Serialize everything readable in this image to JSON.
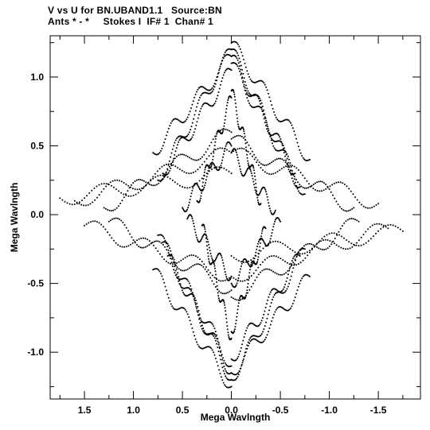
{
  "chart_data": {
    "type": "scatter",
    "title_line1": "V vs U for BN.UBAND1.1   Source:BN",
    "title_line2": "Ants * - *     Stokes I  IF# 1  Chan# 1",
    "xlabel": "Mega Wavlngth",
    "ylabel": "Mega Wavlngth",
    "xlim": [
      1.85,
      -1.93
    ],
    "ylim": [
      -1.34,
      1.3
    ],
    "x_ticks": [
      {
        "value": 1.5,
        "label": "1.5"
      },
      {
        "value": 1.0,
        "label": "1.0"
      },
      {
        "value": 0.5,
        "label": "0.5"
      },
      {
        "value": 0.0,
        "label": "0.0"
      },
      {
        "value": -0.5,
        "label": "-0.5"
      },
      {
        "value": -1.0,
        "label": "-1.0"
      },
      {
        "value": -1.5,
        "label": "-1.5"
      }
    ],
    "y_ticks": [
      {
        "value": 1.0,
        "label": "1.0"
      },
      {
        "value": 0.5,
        "label": "0.5"
      },
      {
        "value": 0.0,
        "label": "0.0"
      },
      {
        "value": -0.5,
        "label": "-0.5"
      },
      {
        "value": -1.0,
        "label": "-1.0"
      }
    ],
    "grid": false,
    "marker_color": "#000000",
    "series": [
      {
        "tracks": [
          {
            "u0": 0.0,
            "u1": -0.7,
            "v0": 1.2,
            "v1": 0.2
          },
          {
            "u0": 0.0,
            "u1": -0.8,
            "v0": 1.25,
            "v1": 0.4
          },
          {
            "u0": 0.0,
            "u1": -0.65,
            "v0": 1.15,
            "v1": 0.3
          },
          {
            "u0": 0.0,
            "u1": -0.75,
            "v0": 1.1,
            "v1": 0.15
          },
          {
            "u0": 0.0,
            "u1": 0.75,
            "v0": 1.2,
            "v1": 0.25
          },
          {
            "u0": 0.0,
            "u1": 0.7,
            "v0": 1.05,
            "v1": 0.3
          },
          {
            "u0": 0.0,
            "u1": 0.8,
            "v0": 1.15,
            "v1": 0.45
          },
          {
            "u0": 0.0,
            "u1": 1.3,
            "v0": 0.6,
            "v1": 0.05
          },
          {
            "u0": 0.0,
            "u1": 1.6,
            "v0": 0.45,
            "v1": 0.1
          },
          {
            "u0": 0.0,
            "u1": 1.75,
            "v0": 0.3,
            "v1": 0.12
          },
          {
            "u0": 0.0,
            "u1": -1.25,
            "v0": 0.55,
            "v1": 0.05
          },
          {
            "u0": 0.0,
            "u1": -1.5,
            "v0": 0.45,
            "v1": 0.08
          },
          {
            "u0": 0.0,
            "u1": 0.5,
            "v0": 0.5,
            "v1": 0.05
          },
          {
            "u0": 0.0,
            "u1": -0.45,
            "v0": 0.45,
            "v1": 0.03
          },
          {
            "u0": 0.0,
            "u1": 0.35,
            "v0": 0.85,
            "v1": 0.1
          },
          {
            "u0": 0.0,
            "u1": -0.3,
            "v0": 0.9,
            "v1": 0.08
          }
        ]
      }
    ]
  }
}
